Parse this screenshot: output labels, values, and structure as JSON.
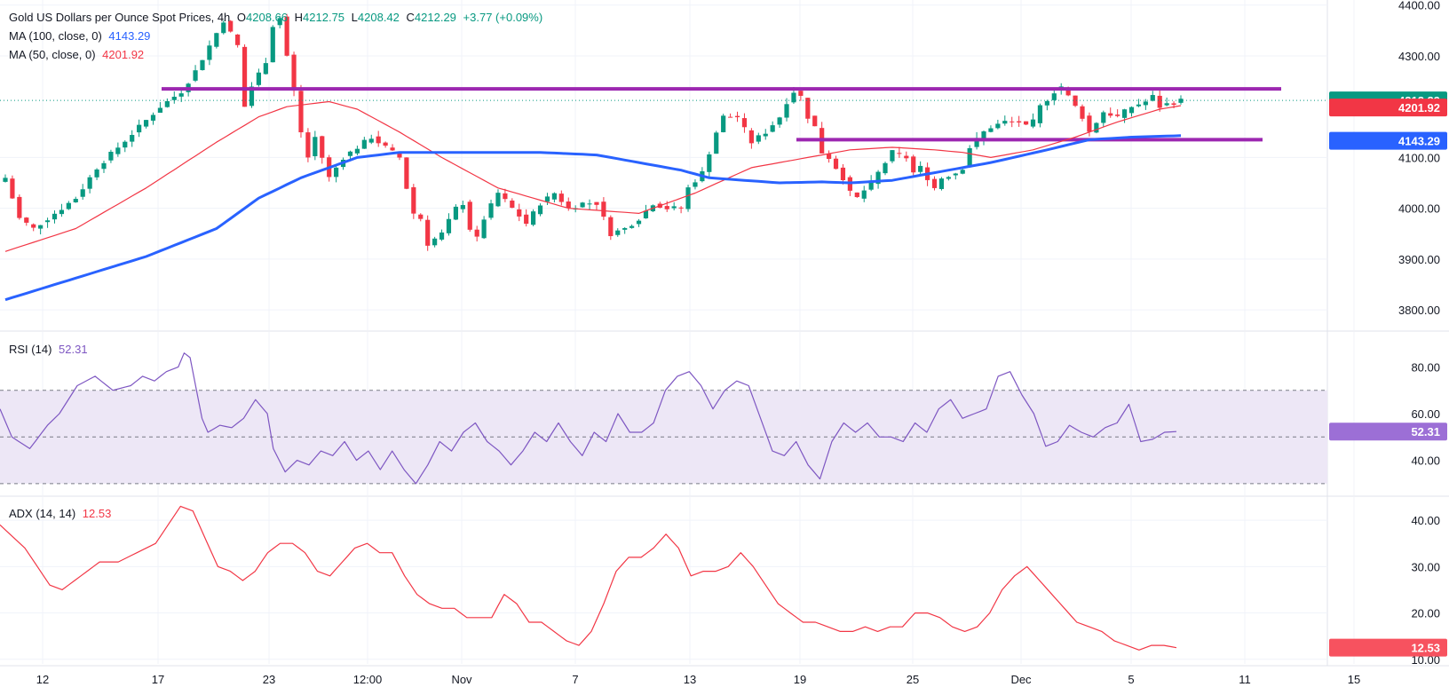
{
  "colors": {
    "up": "#089981",
    "down": "#f23645",
    "ma100": "#2962ff",
    "ma50": "#f23645",
    "rsi": "#7e57c2",
    "adx": "#f23645",
    "level": "#9c27b0",
    "grid": "#f0f3fa",
    "band": "#ede7f6"
  },
  "header": {
    "title": "Gold US Dollars per Ounce Spot Prices, 4h",
    "o_label": "O",
    "o_value": "4208.66",
    "h_label": "H",
    "h_value": "4212.75",
    "l_label": "L",
    "l_value": "4208.42",
    "c_label": "C",
    "c_value": "4212.29",
    "change": "+3.77 (+0.09%)"
  },
  "ma100_legend": {
    "label": "MA (100, close, 0)",
    "value": "4143.29"
  },
  "ma50_legend": {
    "label": "MA (50, close, 0)",
    "value": "4201.92"
  },
  "rsi_legend": {
    "label": "RSI (14)",
    "value": "52.31"
  },
  "adx_legend": {
    "label": "ADX (14, 14)",
    "value": "12.53"
  },
  "chart_data": {
    "type": "candlestick",
    "symbol": "Gold US Dollars per Ounce Spot Prices",
    "timeframe": "4h",
    "x_tick_labels": [
      "12",
      "17",
      "23",
      "12:00",
      "Nov",
      "7",
      "13",
      "19",
      "25",
      "Dec",
      "5",
      "11",
      "15"
    ],
    "price_axis": {
      "ticks": [
        "4400.00",
        "4300.00",
        "4100.00",
        "4000.00",
        "3900.00",
        "3800.00"
      ],
      "ylim": [
        3760,
        4410
      ]
    },
    "price_tags": [
      {
        "value": "4212.29",
        "color": "#089981"
      },
      {
        "value": "4201.92",
        "color": "#f23645"
      },
      {
        "value": "4143.29",
        "color": "#2962ff"
      }
    ],
    "horizontal_levels": [
      4235,
      4135
    ],
    "price_anchors": [
      [
        0,
        4060
      ],
      [
        2,
        3980
      ],
      [
        4,
        3960
      ],
      [
        7,
        3990
      ],
      [
        10,
        4020
      ],
      [
        13,
        4080
      ],
      [
        16,
        4120
      ],
      [
        19,
        4160
      ],
      [
        22,
        4200
      ],
      [
        25,
        4230
      ],
      [
        27,
        4270
      ],
      [
        29,
        4320
      ],
      [
        31,
        4370
      ],
      [
        33,
        4320
      ],
      [
        34,
        4200
      ],
      [
        35,
        4240
      ],
      [
        37,
        4290
      ],
      [
        38,
        4360
      ],
      [
        39,
        4375
      ],
      [
        40,
        4300
      ],
      [
        41,
        4230
      ],
      [
        42,
        4150
      ],
      [
        43,
        4100
      ],
      [
        44,
        4140
      ],
      [
        46,
        4060
      ],
      [
        48,
        4100
      ],
      [
        50,
        4120
      ],
      [
        52,
        4140
      ],
      [
        54,
        4120
      ],
      [
        56,
        4100
      ],
      [
        57,
        4040
      ],
      [
        58,
        3990
      ],
      [
        59,
        3980
      ],
      [
        60,
        3930
      ],
      [
        62,
        3950
      ],
      [
        64,
        4000
      ],
      [
        65,
        4010
      ],
      [
        66,
        3960
      ],
      [
        67,
        3940
      ],
      [
        68,
        3980
      ],
      [
        70,
        4030
      ],
      [
        72,
        4000
      ],
      [
        74,
        3970
      ],
      [
        76,
        4010
      ],
      [
        78,
        4030
      ],
      [
        80,
        4000
      ],
      [
        82,
        4010
      ],
      [
        84,
        4010
      ],
      [
        85,
        3980
      ],
      [
        86,
        3950
      ],
      [
        88,
        3960
      ],
      [
        90,
        3980
      ],
      [
        92,
        4010
      ],
      [
        94,
        4000
      ],
      [
        96,
        4000
      ],
      [
        97,
        4040
      ],
      [
        99,
        4070
      ],
      [
        101,
        4150
      ],
      [
        102,
        4180
      ],
      [
        104,
        4180
      ],
      [
        106,
        4130
      ],
      [
        108,
        4150
      ],
      [
        110,
        4180
      ],
      [
        111,
        4210
      ],
      [
        112,
        4230
      ],
      [
        113,
        4220
      ],
      [
        114,
        4180
      ],
      [
        115,
        4160
      ],
      [
        116,
        4110
      ],
      [
        117,
        4100
      ],
      [
        118,
        4080
      ],
      [
        119,
        4060
      ],
      [
        120,
        4030
      ],
      [
        121,
        4020
      ],
      [
        123,
        4050
      ],
      [
        125,
        4090
      ],
      [
        126,
        4110
      ],
      [
        128,
        4100
      ],
      [
        129,
        4070
      ],
      [
        130,
        4080
      ],
      [
        131,
        4060
      ],
      [
        132,
        4040
      ],
      [
        133,
        4060
      ],
      [
        135,
        4070
      ],
      [
        136,
        4080
      ],
      [
        137,
        4120
      ],
      [
        139,
        4150
      ],
      [
        140,
        4160
      ],
      [
        142,
        4170
      ],
      [
        144,
        4170
      ],
      [
        145,
        4160
      ],
      [
        146,
        4170
      ],
      [
        147,
        4200
      ],
      [
        149,
        4230
      ],
      [
        150,
        4240
      ],
      [
        151,
        4220
      ],
      [
        153,
        4180
      ],
      [
        154,
        4150
      ],
      [
        155,
        4170
      ],
      [
        156,
        4190
      ],
      [
        158,
        4180
      ],
      [
        160,
        4200
      ],
      [
        162,
        4210
      ],
      [
        163,
        4220
      ],
      [
        164,
        4200
      ],
      [
        165,
        4205
      ],
      [
        167,
        4212
      ]
    ],
    "ma100_anchors": [
      [
        0,
        3820
      ],
      [
        20,
        3905
      ],
      [
        30,
        3960
      ],
      [
        36,
        4020
      ],
      [
        42,
        4060
      ],
      [
        50,
        4100
      ],
      [
        56,
        4110
      ],
      [
        66,
        4110
      ],
      [
        76,
        4110
      ],
      [
        84,
        4105
      ],
      [
        90,
        4090
      ],
      [
        96,
        4075
      ],
      [
        100,
        4060
      ],
      [
        110,
        4050
      ],
      [
        116,
        4052
      ],
      [
        120,
        4050
      ],
      [
        126,
        4055
      ],
      [
        132,
        4070
      ],
      [
        140,
        4090
      ],
      [
        148,
        4115
      ],
      [
        154,
        4135
      ],
      [
        160,
        4140
      ],
      [
        167,
        4143
      ]
    ],
    "ma50_anchors": [
      [
        0,
        3915
      ],
      [
        10,
        3960
      ],
      [
        20,
        4040
      ],
      [
        30,
        4130
      ],
      [
        36,
        4180
      ],
      [
        40,
        4200
      ],
      [
        46,
        4210
      ],
      [
        50,
        4195
      ],
      [
        56,
        4150
      ],
      [
        62,
        4100
      ],
      [
        70,
        4040
      ],
      [
        80,
        4000
      ],
      [
        90,
        3990
      ],
      [
        98,
        4030
      ],
      [
        106,
        4080
      ],
      [
        114,
        4100
      ],
      [
        120,
        4115
      ],
      [
        126,
        4120
      ],
      [
        132,
        4115
      ],
      [
        136,
        4110
      ],
      [
        140,
        4100
      ],
      [
        146,
        4115
      ],
      [
        152,
        4140
      ],
      [
        158,
        4170
      ],
      [
        164,
        4195
      ],
      [
        167,
        4202
      ]
    ],
    "rsi": {
      "ticks": [
        "80.00",
        "60.00",
        "40.00"
      ],
      "ylim": [
        25,
        95
      ],
      "overbought": 70,
      "midline": 50,
      "oversold": 30,
      "last": "52.31",
      "anchors": [
        [
          0,
          62
        ],
        [
          2,
          50
        ],
        [
          5,
          45
        ],
        [
          8,
          55
        ],
        [
          10,
          60
        ],
        [
          13,
          72
        ],
        [
          16,
          76
        ],
        [
          19,
          70
        ],
        [
          22,
          72
        ],
        [
          24,
          76
        ],
        [
          26,
          74
        ],
        [
          28,
          78
        ],
        [
          30,
          80
        ],
        [
          31,
          86
        ],
        [
          32,
          84
        ],
        [
          34,
          58
        ],
        [
          35,
          52
        ],
        [
          37,
          55
        ],
        [
          39,
          54
        ],
        [
          41,
          58
        ],
        [
          43,
          66
        ],
        [
          45,
          60
        ],
        [
          46,
          45
        ],
        [
          48,
          35
        ],
        [
          50,
          40
        ],
        [
          52,
          38
        ],
        [
          54,
          44
        ],
        [
          56,
          42
        ],
        [
          58,
          48
        ],
        [
          60,
          40
        ],
        [
          62,
          44
        ],
        [
          64,
          36
        ],
        [
          66,
          44
        ],
        [
          68,
          36
        ],
        [
          70,
          30
        ],
        [
          72,
          38
        ],
        [
          74,
          48
        ],
        [
          76,
          44
        ],
        [
          78,
          52
        ],
        [
          80,
          56
        ],
        [
          82,
          48
        ],
        [
          84,
          44
        ],
        [
          86,
          38
        ],
        [
          88,
          44
        ],
        [
          90,
          52
        ],
        [
          92,
          48
        ],
        [
          94,
          56
        ],
        [
          96,
          48
        ],
        [
          98,
          42
        ],
        [
          100,
          52
        ],
        [
          102,
          48
        ],
        [
          104,
          60
        ],
        [
          106,
          52
        ],
        [
          108,
          52
        ],
        [
          110,
          56
        ],
        [
          112,
          70
        ],
        [
          114,
          76
        ],
        [
          116,
          78
        ],
        [
          118,
          72
        ],
        [
          120,
          62
        ],
        [
          122,
          70
        ],
        [
          124,
          74
        ],
        [
          126,
          72
        ],
        [
          128,
          58
        ],
        [
          130,
          44
        ],
        [
          132,
          42
        ],
        [
          134,
          48
        ],
        [
          136,
          38
        ],
        [
          138,
          32
        ],
        [
          140,
          48
        ],
        [
          142,
          56
        ],
        [
          144,
          52
        ],
        [
          146,
          56
        ],
        [
          148,
          50
        ],
        [
          150,
          50
        ],
        [
          152,
          48
        ],
        [
          154,
          56
        ],
        [
          156,
          52
        ],
        [
          158,
          62
        ],
        [
          160,
          66
        ],
        [
          162,
          58
        ],
        [
          164,
          60
        ],
        [
          166,
          62
        ],
        [
          168,
          76
        ],
        [
          170,
          78
        ],
        [
          172,
          68
        ],
        [
          174,
          60
        ],
        [
          176,
          46
        ],
        [
          178,
          48
        ],
        [
          180,
          55
        ],
        [
          182,
          52
        ],
        [
          184,
          50
        ],
        [
          186,
          54
        ],
        [
          188,
          56
        ],
        [
          190,
          64
        ],
        [
          192,
          48
        ],
        [
          194,
          49
        ],
        [
          196,
          52
        ],
        [
          198,
          52.3
        ]
      ]
    },
    "adx": {
      "ticks": [
        "40.00",
        "30.00",
        "20.00",
        "10.00"
      ],
      "ylim": [
        9,
        45
      ],
      "last": "12.53",
      "anchors": [
        [
          0,
          39
        ],
        [
          4,
          34
        ],
        [
          8,
          26
        ],
        [
          10,
          25
        ],
        [
          13,
          28
        ],
        [
          16,
          31
        ],
        [
          19,
          31
        ],
        [
          22,
          33
        ],
        [
          25,
          35
        ],
        [
          27,
          39
        ],
        [
          29,
          43
        ],
        [
          31,
          42
        ],
        [
          33,
          36
        ],
        [
          35,
          30
        ],
        [
          37,
          29
        ],
        [
          39,
          27
        ],
        [
          41,
          29
        ],
        [
          43,
          33
        ],
        [
          45,
          35
        ],
        [
          47,
          35
        ],
        [
          49,
          33
        ],
        [
          51,
          29
        ],
        [
          53,
          28
        ],
        [
          55,
          31
        ],
        [
          57,
          34
        ],
        [
          59,
          35
        ],
        [
          61,
          33
        ],
        [
          63,
          33
        ],
        [
          65,
          28
        ],
        [
          67,
          24
        ],
        [
          69,
          22
        ],
        [
          71,
          21
        ],
        [
          73,
          21
        ],
        [
          75,
          19
        ],
        [
          77,
          19
        ],
        [
          79,
          19
        ],
        [
          81,
          24
        ],
        [
          83,
          22
        ],
        [
          85,
          18
        ],
        [
          87,
          18
        ],
        [
          89,
          16
        ],
        [
          91,
          14
        ],
        [
          93,
          13
        ],
        [
          95,
          16
        ],
        [
          97,
          22
        ],
        [
          99,
          29
        ],
        [
          101,
          32
        ],
        [
          103,
          32
        ],
        [
          105,
          34
        ],
        [
          107,
          37
        ],
        [
          109,
          34
        ],
        [
          111,
          28
        ],
        [
          113,
          29
        ],
        [
          115,
          29
        ],
        [
          117,
          30
        ],
        [
          119,
          33
        ],
        [
          121,
          30
        ],
        [
          123,
          26
        ],
        [
          125,
          22
        ],
        [
          127,
          20
        ],
        [
          129,
          18
        ],
        [
          131,
          18
        ],
        [
          133,
          17
        ],
        [
          135,
          16
        ],
        [
          137,
          16
        ],
        [
          139,
          17
        ],
        [
          141,
          16
        ],
        [
          143,
          17
        ],
        [
          145,
          17
        ],
        [
          147,
          20
        ],
        [
          149,
          20
        ],
        [
          151,
          19
        ],
        [
          153,
          17
        ],
        [
          155,
          16
        ],
        [
          157,
          17
        ],
        [
          159,
          20
        ],
        [
          161,
          25
        ],
        [
          163,
          28
        ],
        [
          165,
          30
        ],
        [
          167,
          27
        ],
        [
          169,
          24
        ],
        [
          171,
          21
        ],
        [
          173,
          18
        ],
        [
          175,
          17
        ],
        [
          177,
          16
        ],
        [
          179,
          14
        ],
        [
          181,
          13
        ],
        [
          183,
          12
        ],
        [
          185,
          13
        ],
        [
          187,
          13
        ],
        [
          189,
          12.5
        ]
      ]
    }
  }
}
